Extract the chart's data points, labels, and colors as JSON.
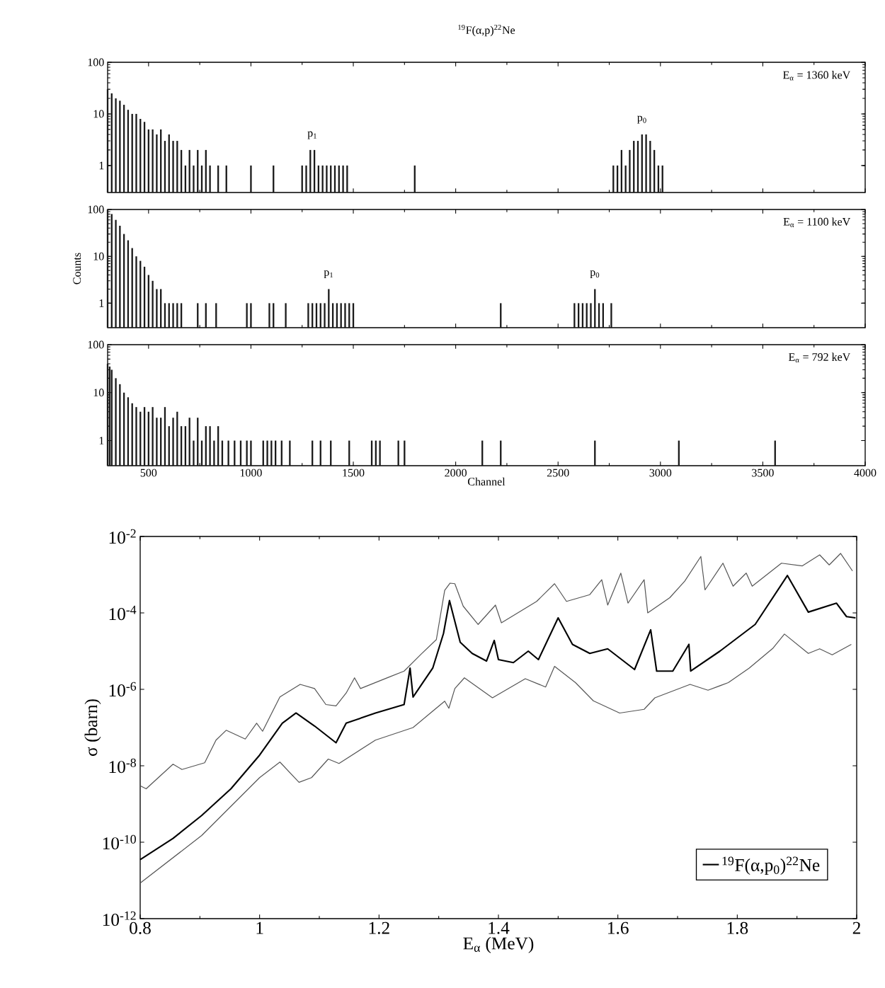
{
  "chart_data": [
    {
      "type": "bar",
      "title": "$^{19}$F(α,p)$^{22}$Ne",
      "log": true,
      "tick_labels": "y",
      "color": "#1a1a1a",
      "xlim": [
        300,
        4000
      ],
      "ylim": [
        0.3,
        100
      ],
      "xticks": [
        500,
        1000,
        1500,
        2000,
        2500,
        3000,
        3500,
        4000
      ],
      "yticks": [
        1,
        10,
        100
      ],
      "x": [
        300,
        320,
        340,
        360,
        380,
        400,
        420,
        440,
        460,
        480,
        500,
        520,
        540,
        560,
        580,
        600,
        620,
        640,
        660,
        680,
        700,
        720,
        740,
        760,
        780,
        800,
        840,
        880,
        1000,
        1110,
        1250,
        1270,
        1290,
        1310,
        1330,
        1350,
        1370,
        1390,
        1410,
        1430,
        1450,
        1470,
        1800,
        2770,
        2790,
        2810,
        2830,
        2850,
        2870,
        2890,
        2910,
        2930,
        2950,
        2970,
        2990,
        3010
      ],
      "values": [
        30,
        25,
        20,
        18,
        15,
        12,
        10,
        10,
        8,
        7,
        5,
        5,
        4,
        5,
        3,
        4,
        3,
        3,
        2,
        1,
        2,
        1,
        2,
        1,
        2,
        1,
        1,
        1,
        1,
        1,
        1,
        1,
        2,
        2,
        1,
        1,
        1,
        1,
        1,
        1,
        1,
        1,
        1,
        1,
        1,
        2,
        1,
        2,
        3,
        3,
        4,
        4,
        3,
        2,
        1,
        1
      ],
      "annotations": [
        "E$_{α}$ = 1360 keV",
        {
          "text": "p$_{1}$",
          "x": 1300,
          "y": 2
        },
        {
          "text": "p$_{0}$",
          "x": 2910,
          "y": 4
        }
      ]
    },
    {
      "type": "bar",
      "ylabel": "Counts",
      "log": true,
      "tick_labels": "y",
      "color": "#1a1a1a",
      "xlim": [
        300,
        4000
      ],
      "ylim": [
        0.3,
        100
      ],
      "xticks": [
        500,
        1000,
        1500,
        2000,
        2500,
        3000,
        3500,
        4000
      ],
      "yticks": [
        1,
        10,
        100
      ],
      "x": [
        300,
        320,
        340,
        360,
        380,
        400,
        420,
        440,
        460,
        480,
        500,
        520,
        540,
        560,
        580,
        600,
        620,
        640,
        660,
        740,
        780,
        830,
        980,
        1000,
        1090,
        1110,
        1170,
        1280,
        1300,
        1320,
        1340,
        1360,
        1380,
        1400,
        1420,
        1440,
        1460,
        1480,
        1500,
        2220,
        2580,
        2600,
        2620,
        2640,
        2660,
        2680,
        2700,
        2720,
        2760
      ],
      "values": [
        100,
        80,
        60,
        45,
        30,
        22,
        15,
        10,
        8,
        6,
        4,
        3,
        2,
        2,
        1,
        1,
        1,
        1,
        1,
        1,
        1,
        1,
        1,
        1,
        1,
        1,
        1,
        1,
        1,
        1,
        1,
        1,
        2,
        1,
        1,
        1,
        1,
        1,
        1,
        1,
        1,
        1,
        1,
        1,
        1,
        2,
        1,
        1,
        1
      ],
      "annotations": [
        "E$_{α}$ = 1100 keV",
        {
          "text": "p$_{1}$",
          "x": 1380,
          "y": 2
        },
        {
          "text": "p$_{0}$",
          "x": 2680,
          "y": 2
        }
      ]
    },
    {
      "type": "bar",
      "xlabel": "Channel",
      "log": true,
      "color": "#1a1a1a",
      "xlim": [
        300,
        4000
      ],
      "ylim": [
        0.3,
        100
      ],
      "xticks": [
        500,
        1000,
        1500,
        2000,
        2500,
        3000,
        3500,
        4000
      ],
      "yticks": [
        1,
        10,
        100
      ],
      "x": [
        300,
        310,
        320,
        340,
        360,
        380,
        400,
        420,
        440,
        460,
        480,
        500,
        520,
        540,
        560,
        580,
        600,
        620,
        640,
        660,
        680,
        700,
        720,
        740,
        760,
        780,
        800,
        820,
        840,
        860,
        890,
        920,
        950,
        980,
        1000,
        1060,
        1080,
        1100,
        1120,
        1150,
        1190,
        1300,
        1340,
        1390,
        1480,
        1590,
        1610,
        1630,
        1720,
        1750,
        2130,
        2220,
        2680,
        3090,
        3560
      ],
      "values": [
        40,
        35,
        30,
        20,
        15,
        10,
        8,
        6,
        5,
        4,
        5,
        4,
        5,
        3,
        3,
        5,
        2,
        3,
        4,
        2,
        2,
        3,
        1,
        3,
        1,
        2,
        2,
        1,
        2,
        1,
        1,
        1,
        1,
        1,
        1,
        1,
        1,
        1,
        1,
        1,
        1,
        1,
        1,
        1,
        1,
        1,
        1,
        1,
        1,
        1,
        1,
        1,
        1,
        1,
        1
      ],
      "annotations": [
        "E$_{α}$ = 792 keV"
      ]
    },
    {
      "type": "line",
      "xlabel": "E$_{α}$ (MeV)",
      "ylabel": "σ (barn)",
      "log": true,
      "legend": "bottom right",
      "xlim": [
        0.8,
        2
      ],
      "ylim": [
        1e-12,
        0.01
      ],
      "xticks": [
        0.8,
        1,
        1.2,
        1.4,
        1.6,
        1.8,
        2
      ],
      "yticks": [
        {
          "value": 1e-12,
          "label": "10$^{-12}$"
        },
        {
          "value": 1e-10,
          "label": "10$^{-10}$"
        },
        {
          "value": 1e-08,
          "label": "10$^{-8}$"
        },
        {
          "value": 1e-06,
          "label": "10$^{-6}$"
        },
        {
          "value": 0.0001,
          "label": "10$^{-4}$"
        },
        {
          "value": 0.01,
          "label": "10$^{-2}$"
        }
      ],
      "series": [
        {
          "color": "#555555",
          "x": [
            0.8,
            0.81,
            0.855,
            0.87,
            0.908,
            0.927,
            0.944,
            0.976,
            0.995,
            1.005,
            1.034,
            1.068,
            1.092,
            1.111,
            1.128,
            1.145,
            1.159,
            1.169,
            1.217,
            1.242,
            1.271,
            1.296,
            1.31,
            1.319,
            1.327,
            1.341,
            1.366,
            1.395,
            1.405,
            1.464,
            1.494,
            1.514,
            1.553,
            1.573,
            1.583,
            1.605,
            1.617,
            1.644,
            1.65,
            1.687,
            1.712,
            1.739,
            1.746,
            1.776,
            1.793,
            1.815,
            1.825,
            1.874,
            1.909,
            1.938,
            1.954,
            1.973,
            1.993
          ],
          "values": [
            3e-09,
            2.5e-09,
            1.1e-08,
            8e-09,
            1.2e-08,
            4.7e-08,
            8.5e-08,
            5e-08,
            1.3e-07,
            8e-08,
            6.3e-07,
            1.35e-06,
            1.05e-06,
            4e-07,
            3.7e-07,
            8e-07,
            2e-06,
            1.05e-06,
            2.1e-06,
            3e-06,
            8.5e-06,
            2e-05,
            0.00039,
            0.0006,
            0.00058,
            0.00015,
            5e-05,
            0.00016,
            5.5e-05,
            0.0002,
            0.00058,
            0.0002,
            0.0003,
            0.00074,
            0.00016,
            0.0011,
            0.00018,
            0.00074,
            0.0001,
            0.00025,
            0.00068,
            0.003,
            0.0004,
            0.002,
            0.0005,
            0.0011,
            0.0005,
            0.002,
            0.0017,
            0.0033,
            0.0018,
            0.0036,
            0.00125
          ]
        },
        {
          "name": "$^{19}$F(α,p$_{0}$)$^{22}$Ne",
          "color": "#000000",
          "x": [
            0.8,
            0.855,
            0.903,
            0.952,
            1.0,
            1.038,
            1.061,
            1.092,
            1.128,
            1.145,
            1.194,
            1.242,
            1.252,
            1.257,
            1.29,
            1.308,
            1.318,
            1.336,
            1.356,
            1.38,
            1.393,
            1.4,
            1.425,
            1.45,
            1.467,
            1.5,
            1.524,
            1.553,
            1.583,
            1.628,
            1.655,
            1.665,
            1.692,
            1.719,
            1.722,
            1.771,
            1.83,
            1.884,
            1.919,
            1.966,
            1.983,
            1.998
          ],
          "values": [
            3.5e-11,
            1.26e-10,
            5e-10,
            2.5e-09,
            1.9e-08,
            1.3e-07,
            2.4e-07,
            1.1e-07,
            4e-08,
            1.3e-07,
            2.4e-07,
            4e-07,
            3.6e-06,
            6.3e-07,
            3.6e-06,
            2.9e-05,
            0.00021,
            1.7e-05,
            8.7e-06,
            5.5e-06,
            1.9e-05,
            6e-06,
            5e-06,
            1e-05,
            6e-06,
            7.4e-05,
            1.5e-05,
            8.7e-06,
            1.15e-05,
            3.3e-06,
            3.6e-05,
            3e-06,
            3e-06,
            1.5e-05,
            3e-06,
            1e-05,
            5e-05,
            0.00095,
            0.000105,
            0.00018,
            8e-05,
            7.4e-05
          ]
        },
        {
          "color": "#555555",
          "x": [
            0.8,
            0.903,
            1.0,
            1.034,
            1.066,
            1.087,
            1.115,
            1.133,
            1.194,
            1.257,
            1.29,
            1.31,
            1.317,
            1.327,
            1.343,
            1.39,
            1.445,
            1.479,
            1.494,
            1.529,
            1.559,
            1.603,
            1.644,
            1.662,
            1.721,
            1.751,
            1.785,
            1.82,
            1.86,
            1.879,
            1.919,
            1.938,
            1.959,
            1.991
          ],
          "values": [
            8.5e-12,
            1.5e-10,
            4.9e-09,
            1.25e-08,
            3.7e-09,
            4.9e-09,
            1.5e-08,
            1.15e-08,
            4.7e-08,
            1e-07,
            2.7e-07,
            4.9e-07,
            3.2e-07,
            1.05e-06,
            2e-06,
            6e-07,
            1.9e-06,
            1.15e-06,
            4e-06,
            1.5e-06,
            5e-07,
            2.4e-07,
            3e-07,
            6e-07,
            1.35e-06,
            9.5e-07,
            1.5e-06,
            3.6e-06,
            1.2e-05,
            2.8e-05,
            8.7e-06,
            1.15e-05,
            8e-06,
            1.5e-05
          ]
        }
      ]
    }
  ]
}
